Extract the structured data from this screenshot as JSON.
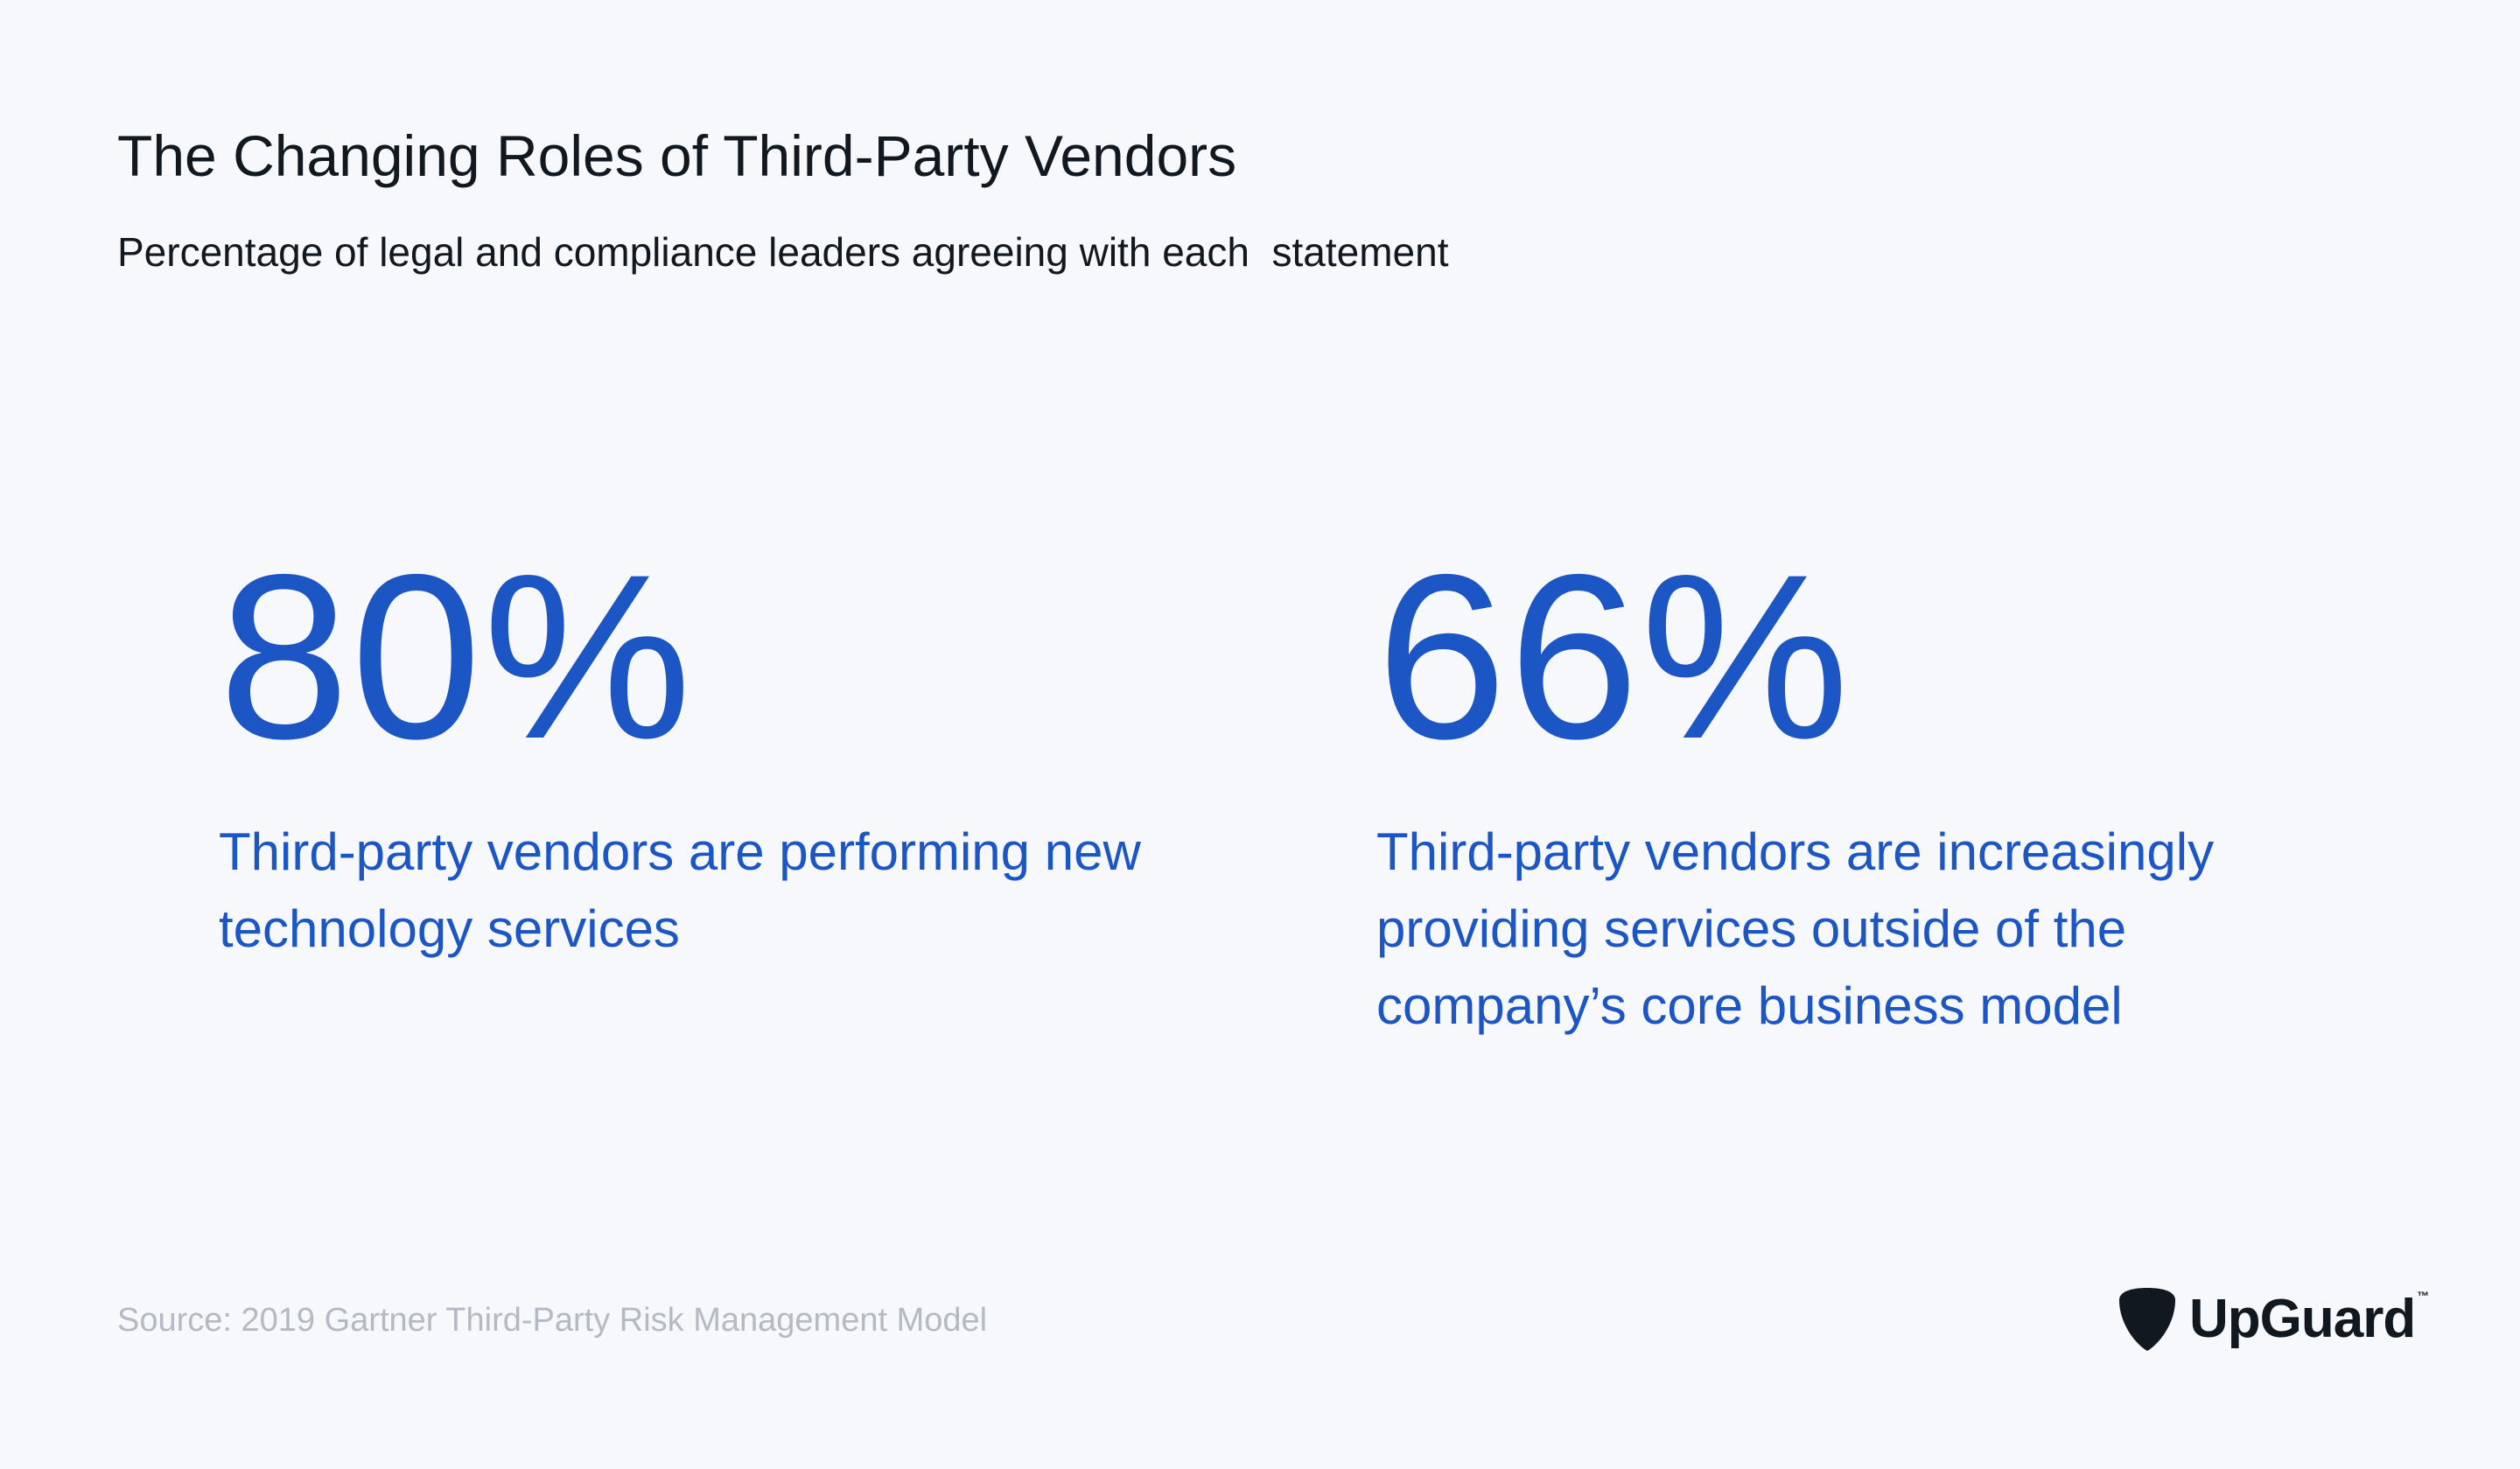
{
  "header": {
    "title": "The Changing Roles of Third-Party Vendors",
    "subtitle": "Percentage of legal and compliance leaders agreeing with each  statement"
  },
  "stats": [
    {
      "value": "80%",
      "label": "Third-party vendors are performing new technology services"
    },
    {
      "value": "66%",
      "label": "Third-party vendors are increasingly providing services outside of the company’s core business model"
    }
  ],
  "footer": {
    "source": "Source: 2019 Gartner Third-Party Risk Management Model",
    "logo": {
      "icon": "guitar-pick-shield-icon",
      "text": "UpGuard",
      "trademark": "™"
    }
  },
  "colors": {
    "background": "#f6f8fc",
    "accent": "#1c55c4",
    "text": "#121820",
    "muted": "#b4b9c3"
  }
}
